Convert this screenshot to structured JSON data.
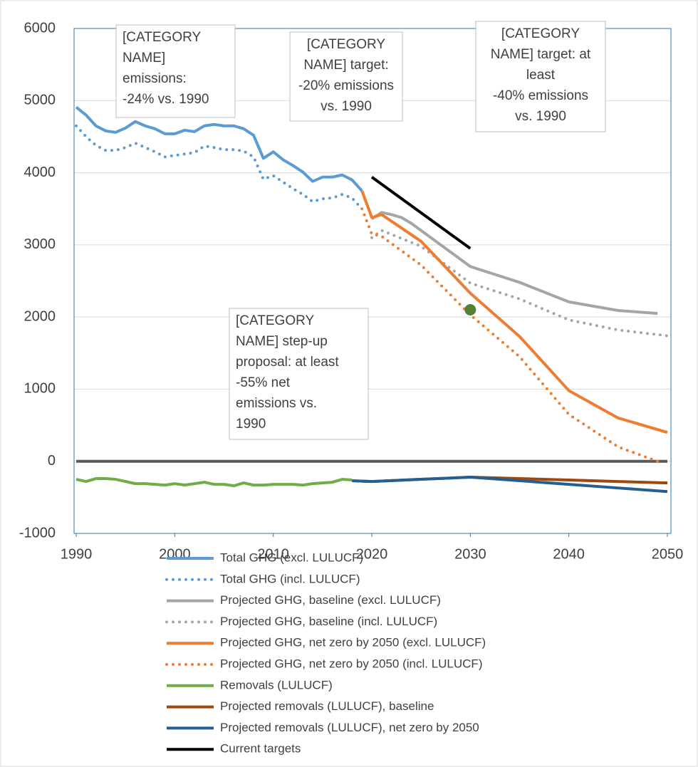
{
  "chart_data": {
    "type": "line",
    "xlim": [
      1990,
      2050
    ],
    "xticks": [
      1990,
      2000,
      2010,
      2020,
      2030,
      2040,
      2050
    ],
    "ylim": [
      -1000,
      6000
    ],
    "yticks": [
      -1000,
      0,
      1000,
      2000,
      3000,
      4000,
      5000,
      6000
    ],
    "grid": true,
    "legend": "bottom",
    "annotations": [
      {
        "lines": [
          "[CATEGORY",
          "NAME]",
          "emissions:",
          "-24% vs. 1990"
        ]
      },
      {
        "lines": [
          "[CATEGORY",
          "NAME] target:",
          "-20% emissions",
          "vs. 1990"
        ]
      },
      {
        "lines": [
          "[CATEGORY",
          "NAME] target: at",
          "least",
          "-40% emissions",
          "vs. 1990"
        ]
      },
      {
        "lines": [
          "[CATEGORY",
          "NAME] step-up",
          "proposal: at least",
          "-55% net",
          "emissions vs.",
          "1990"
        ]
      }
    ],
    "points": [
      {
        "x": 2030,
        "value": 2100,
        "color": "#548235"
      }
    ],
    "series": [
      {
        "name": "Total GHG (excl. LULUCF)",
        "color": "#5b9bd5",
        "dash": false,
        "x": [
          1990,
          1991,
          1992,
          1993,
          1994,
          1995,
          1996,
          1997,
          1998,
          1999,
          2000,
          2001,
          2002,
          2003,
          2004,
          2005,
          2006,
          2007,
          2008,
          2009,
          2010,
          2011,
          2012,
          2013,
          2014,
          2015,
          2016,
          2017,
          2018,
          2019
        ],
        "values": [
          4910,
          4800,
          4650,
          4580,
          4560,
          4620,
          4710,
          4650,
          4610,
          4540,
          4540,
          4590,
          4570,
          4650,
          4670,
          4650,
          4650,
          4610,
          4520,
          4200,
          4290,
          4180,
          4100,
          4010,
          3880,
          3940,
          3940,
          3970,
          3900,
          3750
        ]
      },
      {
        "name": "Total GHG (incl. LULUCF)",
        "color": "#5b9bd5",
        "dash": true,
        "x": [
          1990,
          1991,
          1992,
          1993,
          1994,
          1995,
          1996,
          1997,
          1998,
          1999,
          2000,
          2001,
          2002,
          2003,
          2004,
          2005,
          2006,
          2007,
          2008,
          2009,
          2010,
          2011,
          2012,
          2013,
          2014,
          2015,
          2016,
          2017,
          2018,
          2019
        ],
        "values": [
          4650,
          4500,
          4380,
          4310,
          4310,
          4350,
          4410,
          4350,
          4290,
          4220,
          4240,
          4260,
          4280,
          4370,
          4350,
          4320,
          4320,
          4300,
          4220,
          3910,
          3960,
          3870,
          3780,
          3700,
          3600,
          3640,
          3650,
          3700,
          3650,
          3500
        ]
      },
      {
        "name": "Projected GHG, baseline (excl. LULUCF)",
        "color": "#a5a5a5",
        "dash": false,
        "x": [
          2020,
          2021,
          2022,
          2023,
          2024,
          2025,
          2030,
          2035,
          2040,
          2045,
          2049
        ],
        "values": [
          3360,
          3450,
          3420,
          3380,
          3300,
          3200,
          2700,
          2480,
          2210,
          2090,
          2050
        ]
      },
      {
        "name": "Projected GHG, baseline (incl. LULUCF)",
        "color": "#a5a5a5",
        "dash": true,
        "x": [
          2020,
          2021,
          2025,
          2030,
          2035,
          2040,
          2045,
          2050
        ],
        "values": [
          3100,
          3200,
          2980,
          2470,
          2250,
          1960,
          1820,
          1740
        ]
      },
      {
        "name": "Projected GHG, net zero by 2050 (excl. LULUCF)",
        "color": "#ed7d31",
        "dash": false,
        "x": [
          2019,
          2020,
          2021,
          2025,
          2030,
          2035,
          2040,
          2045,
          2050
        ],
        "values": [
          3750,
          3380,
          3420,
          3050,
          2330,
          1730,
          980,
          600,
          400
        ]
      },
      {
        "name": "Projected GHG, net zero by 2050 (incl. LULUCF)",
        "color": "#ed7d31",
        "dash": true,
        "x": [
          2019,
          2020,
          2021,
          2025,
          2030,
          2035,
          2040,
          2045,
          2049
        ],
        "values": [
          3500,
          3150,
          3120,
          2720,
          2030,
          1450,
          650,
          200,
          0
        ]
      },
      {
        "name": "Removals (LULUCF)",
        "color": "#70ad47",
        "dash": false,
        "x": [
          1990,
          1991,
          1992,
          1993,
          1994,
          1995,
          1996,
          1997,
          1998,
          1999,
          2000,
          2001,
          2002,
          2003,
          2004,
          2005,
          2006,
          2007,
          2008,
          2009,
          2010,
          2011,
          2012,
          2013,
          2014,
          2015,
          2016,
          2017,
          2018
        ],
        "values": [
          -250,
          -280,
          -240,
          -240,
          -250,
          -280,
          -310,
          -310,
          -320,
          -330,
          -310,
          -330,
          -310,
          -290,
          -320,
          -320,
          -340,
          -300,
          -330,
          -330,
          -320,
          -320,
          -320,
          -330,
          -310,
          -300,
          -290,
          -250,
          -260
        ]
      },
      {
        "name": "Projected removals (LULUCF), baseline",
        "color": "#9e480e",
        "dash": false,
        "x": [
          2018,
          2020,
          2025,
          2030,
          2035,
          2040,
          2045,
          2050
        ],
        "values": [
          -270,
          -280,
          -250,
          -220,
          -240,
          -260,
          -280,
          -300
        ]
      },
      {
        "name": "Projected removals (LULUCF), net zero by 2050",
        "color": "#255e91",
        "dash": false,
        "x": [
          2018,
          2020,
          2025,
          2030,
          2035,
          2040,
          2045,
          2050
        ],
        "values": [
          -270,
          -280,
          -250,
          -220,
          -270,
          -320,
          -370,
          -420
        ]
      },
      {
        "name": "Current targets",
        "color": "#000000",
        "dash": false,
        "x": [
          2020,
          2030
        ],
        "values": [
          3940,
          2950
        ]
      }
    ]
  }
}
